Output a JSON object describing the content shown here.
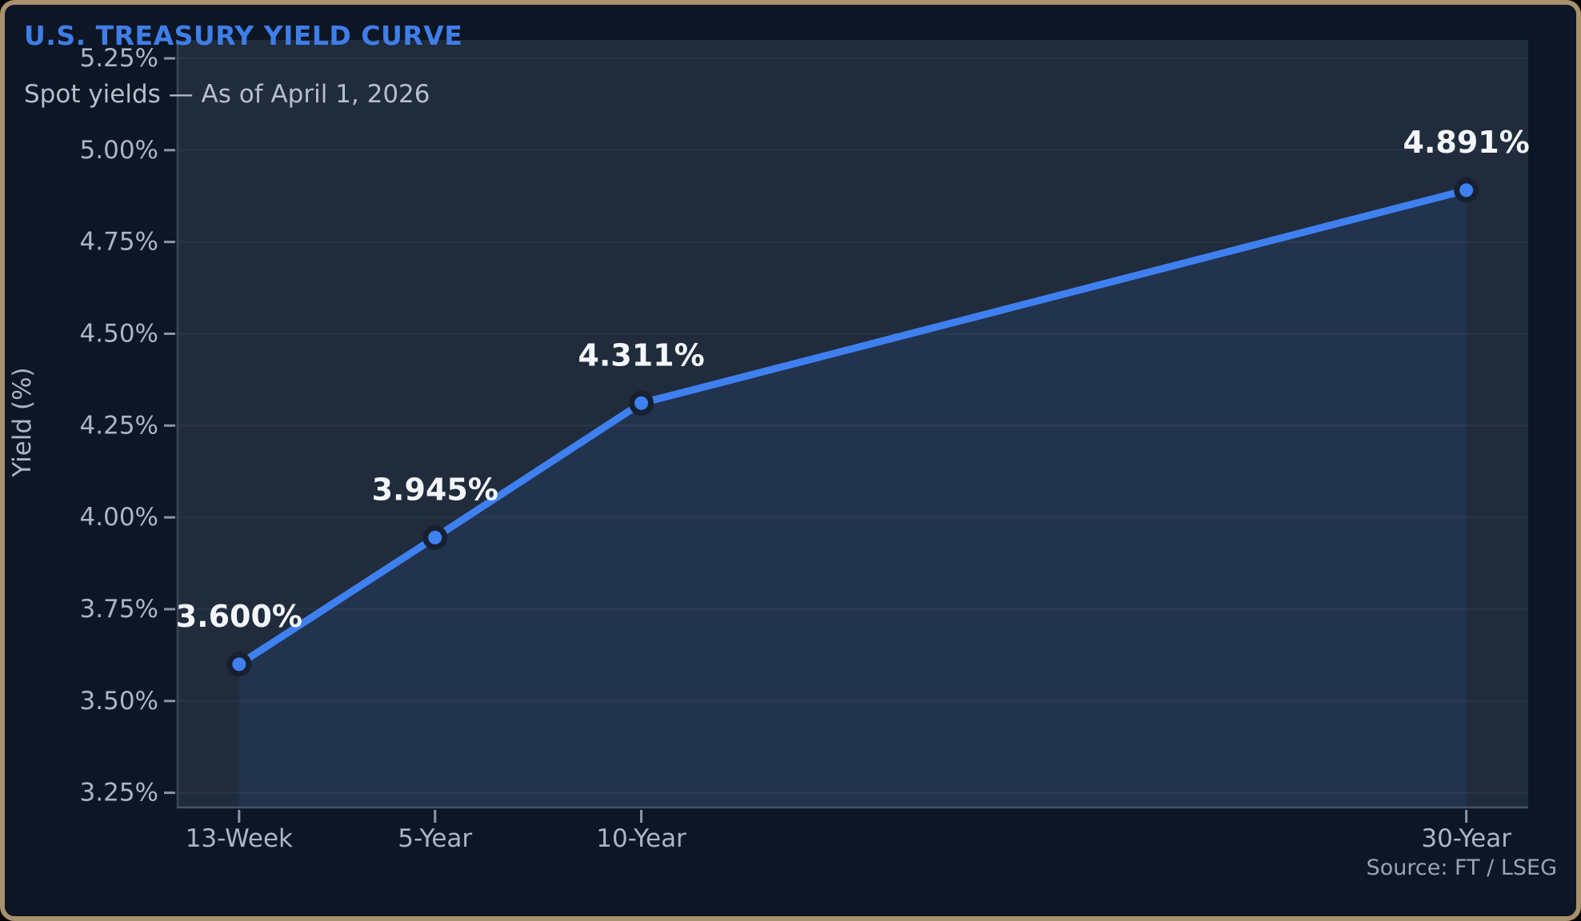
{
  "header": {
    "title": "U.S. TREASURY YIELD CURVE",
    "subtitle": "Spot yields — As of April 1, 2026"
  },
  "footer": {
    "source": "Source: FT / LSEG"
  },
  "colors": {
    "outer_bg": "#0d1625",
    "plot_bg": "#202b3c",
    "gridline": "#2a3448",
    "y_axis_spine": "#3c4859",
    "x_axis_spine": "#46536a",
    "tick_mark": "#8a96aa",
    "tick_label": "#aab5c6",
    "line": "#3f80f0",
    "point_fill": "#3f80f0",
    "point_ring": "#16202f",
    "area_fill": "rgba(63,128,240,0.10)",
    "title_accent": "#3f7ee8",
    "data_label": "#f3f6fa",
    "border": "#a8916d"
  },
  "chart_data": {
    "type": "line",
    "title": "U.S. TREASURY YIELD CURVE",
    "subtitle": "Spot yields — As of April 1, 2026",
    "ylabel": "Yield (%)",
    "xlabel": "",
    "categories": [
      "13-Week",
      "5-Year",
      "10-Year",
      "30-Year"
    ],
    "maturity_years": [
      0.25,
      5,
      10,
      30
    ],
    "values": [
      3.6,
      3.945,
      4.311,
      4.891
    ],
    "point_labels": [
      "3.600%",
      "3.945%",
      "4.311%",
      "4.891%"
    ],
    "yticks": [
      {
        "value": 5.25,
        "label": "5.25%"
      },
      {
        "value": 5.0,
        "label": "5.00%"
      },
      {
        "value": 4.75,
        "label": "4.75%"
      },
      {
        "value": 4.5,
        "label": "4.50%"
      },
      {
        "value": 4.25,
        "label": "4.25%"
      },
      {
        "value": 4.0,
        "label": "4.00%"
      },
      {
        "value": 3.75,
        "label": "3.75%"
      },
      {
        "value": 3.5,
        "label": "3.50%"
      },
      {
        "value": 3.25,
        "label": "3.25%"
      }
    ],
    "ylim": [
      3.21,
      5.3
    ],
    "xlim_years": [
      -1.26,
      31.5
    ],
    "grid": true,
    "legend": "none",
    "area_fill": true,
    "source": "Source: FT / LSEG"
  }
}
